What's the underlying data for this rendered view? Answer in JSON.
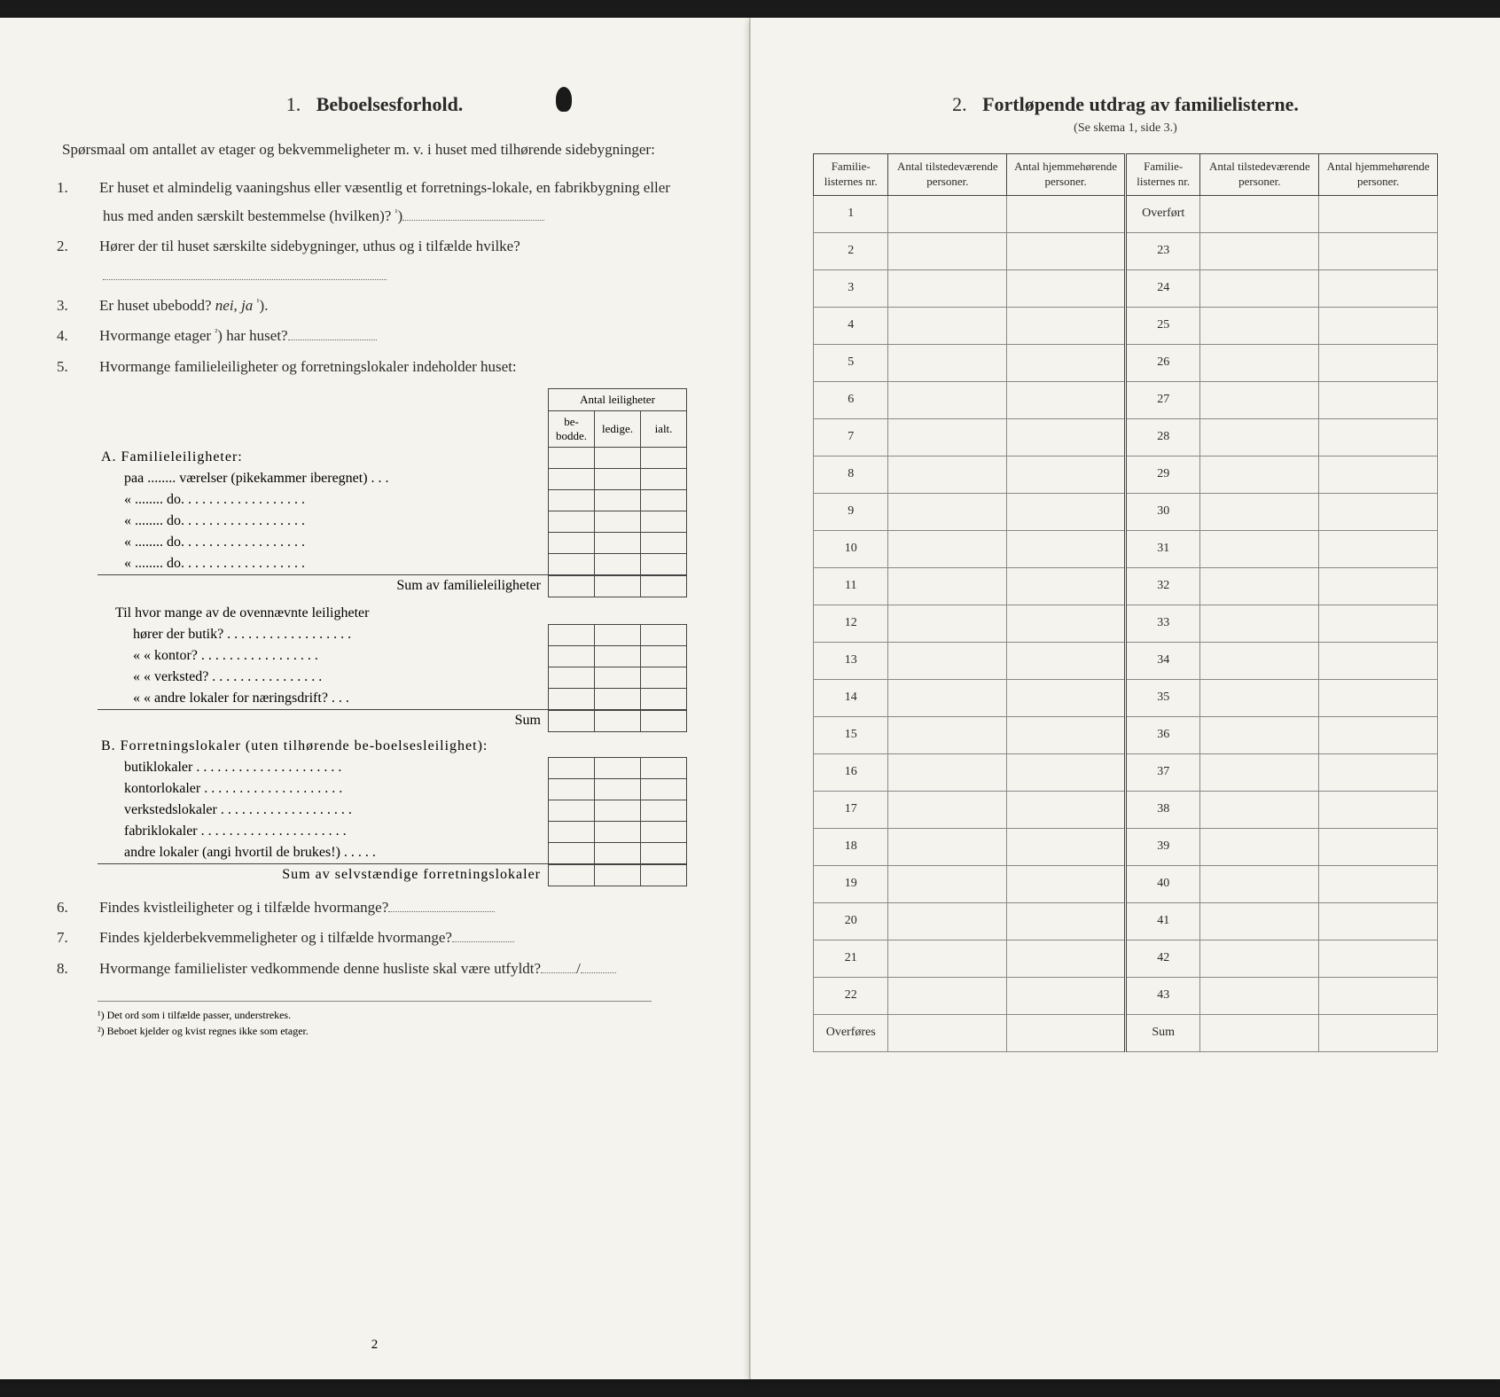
{
  "left": {
    "section_number": "1.",
    "section_title": "Beboelsesforhold.",
    "intro": "Spørsmaal om antallet av etager og bekvemmeligheter m. v. i huset med tilhørende sidebygninger:",
    "q1": "Er huset et almindelig vaaningshus eller væsentlig et forretnings-lokale, en fabrikbygning eller hus med anden særskilt bestemmelse (hvilken)?",
    "q2": "Hører der til huset særskilte sidebygninger, uthus og i tilfælde hvilke?",
    "q3_pre": "Er huset ubebodd?",
    "q3_nei": "nei,",
    "q3_ja": "ja",
    "q4": "Hvormange etager",
    "q4_post": "har huset?",
    "q5": "Hvormange familieleiligheter og forretningslokaler indeholder huset:",
    "tbl_header_top": "Antal leiligheter",
    "tbl_h1": "be-bodde.",
    "tbl_h2": "ledige.",
    "tbl_h3": "ialt.",
    "secA_label": "A. Familieleiligheter:",
    "secA_r1": "paa ........ værelser (pikekammer iberegnet) . . .",
    "secA_r2": "«   ........   do.   . . . . . . . . . . . . . . . . .",
    "secA_r3": "«   ........   do.   . . . . . . . . . . . . . . . . .",
    "secA_r4": "«   ........   do.   . . . . . . . . . . . . . . . . .",
    "secA_r5": "«   ........   do.   . . . . . . . . . . . . . . . . .",
    "secA_sum": "Sum av familieleiligheter",
    "secA2_intro": "Til hvor mange av de ovennævnte leiligheter",
    "secA2_r1": "hører der butik? . . . . . . . . . . . . . . . . . .",
    "secA2_r2": "«     « kontor? . . . . . . . . . . . . . . . . .",
    "secA2_r3": "«     « verksted? . . . . . . . . . . . . . . . .",
    "secA2_r4": "«     « andre lokaler for næringsdrift? . . .",
    "secA2_sum": "Sum",
    "secB_label": "B. Forretningslokaler (uten tilhørende be-boelsesleilighet):",
    "secB_r1": "butiklokaler . . . . . . . . . . . . . . . . . . . . .",
    "secB_r2": "kontorlokaler . . . . . . . . . . . . . . . . . . . .",
    "secB_r3": "verkstedslokaler . . . . . . . . . . . . . . . . . . .",
    "secB_r4": "fabriklokaler . . . . . . . . . . . . . . . . . . . . .",
    "secB_r5": "andre lokaler (angi hvortil de brukes!) . . . . .",
    "secB_sum": "Sum av selvstændige forretningslokaler",
    "q6": "Findes kvistleiligheter og i tilfælde hvormange?",
    "q7": "Findes kjelderbekvemmeligheter og i tilfælde hvormange?",
    "q8": "Hvormange familielister vedkommende denne husliste skal være utfyldt?",
    "q8_val": "/",
    "fn1_mark": "¹)",
    "fn1": "Det ord som i tilfælde passer, understrekes.",
    "fn2_mark": "²)",
    "fn2": "Beboet kjelder og kvist regnes ikke som etager.",
    "page_num": "2"
  },
  "right": {
    "section_number": "2.",
    "section_title": "Fortløpende utdrag av familielisterne.",
    "subtitle": "(Se skema 1, side 3.)",
    "h1": "Familie-listernes nr.",
    "h2": "Antal tilstedeværende personer.",
    "h3": "Antal hjemmehørende personer.",
    "h4": "Familie-listernes nr.",
    "h5": "Antal tilstedeværende personer.",
    "h6": "Antal hjemmehørende personer.",
    "left_nums": [
      "1",
      "2",
      "3",
      "4",
      "5",
      "6",
      "7",
      "8",
      "9",
      "10",
      "11",
      "12",
      "13",
      "14",
      "15",
      "16",
      "17",
      "18",
      "19",
      "20",
      "21",
      "22",
      "Overføres"
    ],
    "right_nums": [
      "Overført",
      "23",
      "24",
      "25",
      "26",
      "27",
      "28",
      "29",
      "30",
      "31",
      "32",
      "33",
      "34",
      "35",
      "36",
      "37",
      "38",
      "39",
      "40",
      "41",
      "42",
      "43",
      "Sum"
    ]
  },
  "colors": {
    "paper": "#f5f3ed",
    "text": "#2a2a2a",
    "border": "#444444",
    "bg": "#1a1a1a"
  }
}
